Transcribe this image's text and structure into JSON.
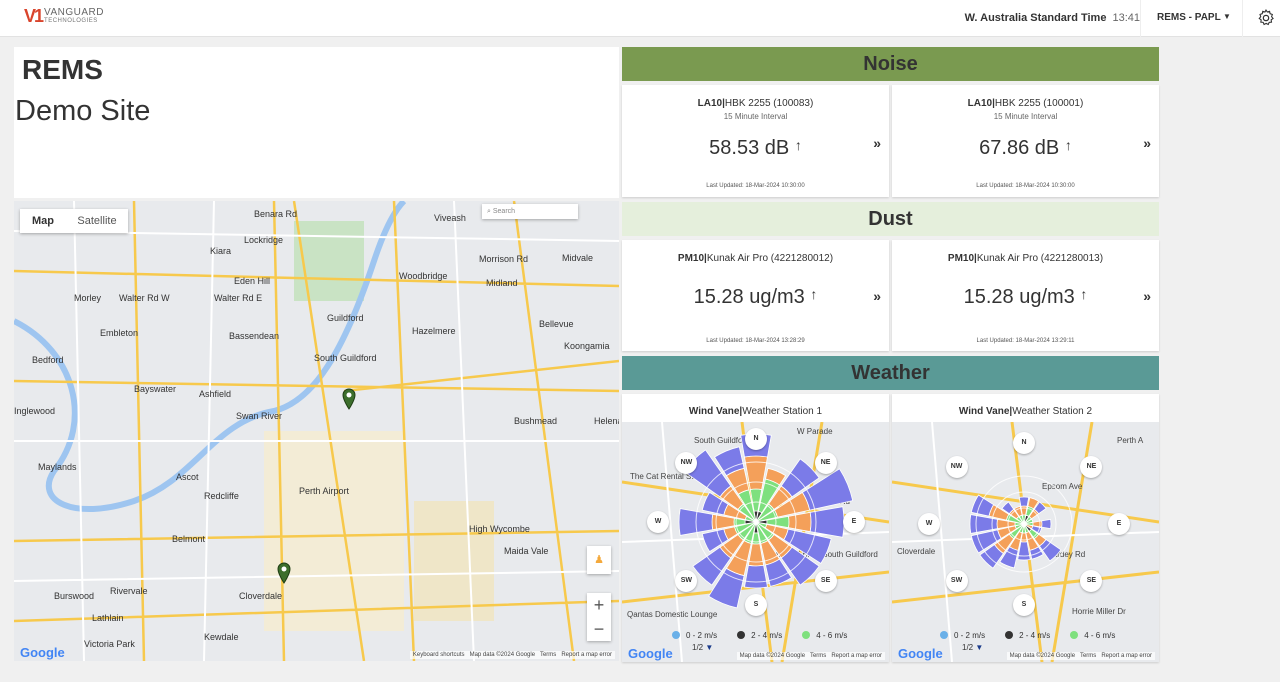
{
  "header": {
    "logo_mark": "V1",
    "logo_line1": "VANGUARD",
    "logo_line2": "TECHNOLOGIES",
    "timezone": "W. Australia Standard Time",
    "time": "13:41",
    "site_select": "REMS - PAPL",
    "settings_icon": "gear-icon"
  },
  "site": {
    "title": "REMS",
    "subtitle": "Demo Site"
  },
  "map": {
    "tab_map": "Map",
    "tab_satellite": "Satellite",
    "search_placeholder": "Search",
    "zoom_in": "+",
    "zoom_out": "−",
    "footer": [
      "Keyboard shortcuts",
      "Map data ©2024 Google",
      "Terms",
      "Report a map error"
    ],
    "google": "Google",
    "labels": [
      "Benara Rd",
      "Viveash",
      "Kiara",
      "Lockridge",
      "Midvale",
      "Morrison Rd",
      "Eden Hill",
      "Woodbridge",
      "Morley",
      "Walter Rd W",
      "Walter Rd E",
      "Midland",
      "Embleton",
      "Guildford",
      "Bellevue",
      "Hazelmere",
      "Bassendean",
      "Koongamia",
      "Bedford",
      "South Guildford",
      "Bayswater",
      "Ashfield",
      "Bushmead",
      "Swan River",
      "Helena",
      "Maylands",
      "Ascot",
      "Redcliffe",
      "Perth Airport",
      "High Wycombe",
      "Belmont",
      "Maida Vale",
      "Burswood",
      "Rivervale",
      "Cloverdale",
      "Lathlain",
      "Kewdale",
      "Victoria Park",
      "Inglewood"
    ]
  },
  "noise": {
    "title": "Noise",
    "color": "#7a9a50",
    "cards": [
      {
        "metric": "LA10",
        "sensor": "HBK 2255 (100083)",
        "interval": "15 Minute Interval",
        "value": "58.53 dB",
        "trend": "↑",
        "updated": "Last Updated: 18-Mar-2024 10:30:00",
        "more": "»"
      },
      {
        "metric": "LA10",
        "sensor": "HBK 2255 (100001)",
        "interval": "15 Minute Interval",
        "value": "67.86 dB",
        "trend": "↑",
        "updated": "Last Updated: 18-Mar-2024 10:30:00",
        "more": "»"
      }
    ]
  },
  "dust": {
    "title": "Dust",
    "color": "#e5efdc",
    "cards": [
      {
        "metric": "PM10",
        "sensor": "Kunak Air Pro (4221280012)",
        "value": "15.28 ug/m3",
        "trend": "↑",
        "updated": "Last Updated: 18-Mar-2024 13:28:29",
        "more": "»"
      },
      {
        "metric": "PM10",
        "sensor": "Kunak Air Pro (4221280013)",
        "value": "15.28 ug/m3",
        "trend": "↑",
        "updated": "Last Updated: 18-Mar-2024 13:29:11",
        "more": "»"
      }
    ]
  },
  "weather": {
    "title": "Weather",
    "color": "#5a9a96",
    "cards": [
      {
        "metric": "Wind Vane",
        "sensor": "Weather Station 1",
        "places": [
          "South Guildford",
          "The Cat Rental Store",
          "Midland Brick South Guildford",
          "Kalamunda Rd",
          "Qantas Domestic Lounge",
          "W Parade"
        ]
      },
      {
        "metric": "Wind Vane",
        "sensor": "Weather Station 2",
        "places": [
          "Perth A",
          "Cloverdale",
          "Epsom Ave",
          "Hardey Rd",
          "Horrie Miller Dr"
        ]
      }
    ],
    "compass": [
      "N",
      "NE",
      "E",
      "SE",
      "S",
      "SW",
      "W",
      "NW"
    ],
    "legend": [
      {
        "label": "0 - 2 m/s",
        "color": "#6ab0e8"
      },
      {
        "label": "2 - 4 m/s",
        "color": "#333333"
      },
      {
        "label": "4 - 6 m/s",
        "color": "#7ee07e"
      }
    ],
    "legend_page": "1/2",
    "bin_colors": [
      "#6ab0e8",
      "#333333",
      "#7ee07e",
      "#f4a05a",
      "#7b7be8"
    ],
    "map_footer": [
      "Map data ©2024 Google",
      "Terms",
      "Report a map error"
    ],
    "google": "Google"
  }
}
